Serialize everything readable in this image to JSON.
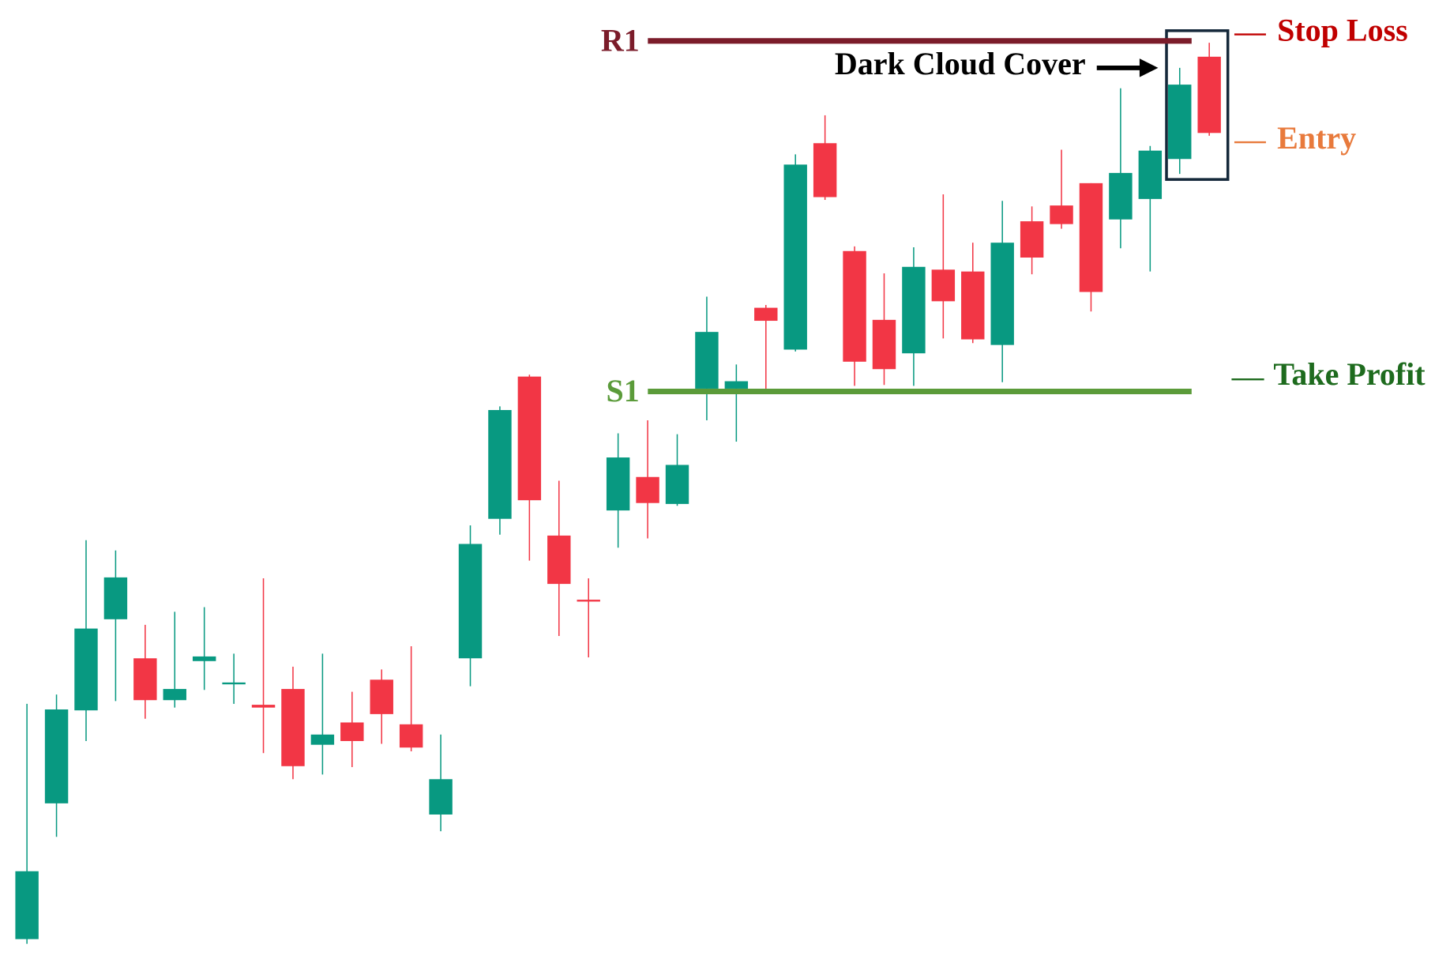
{
  "chart_data": {
    "type": "candlestick",
    "open": [
      30,
      176,
      276,
      374,
      332,
      287,
      329,
      305,
      282,
      299,
      239,
      263,
      309,
      261,
      164,
      332,
      482,
      635,
      464,
      395,
      491,
      527,
      498,
      622,
      622,
      709,
      664,
      886,
      770,
      696,
      660,
      750,
      748,
      669,
      802,
      819,
      843,
      804,
      826,
      869,
      979
    ],
    "high": [
      283,
      293,
      459,
      448,
      368,
      382,
      387,
      337,
      418,
      323,
      337,
      296,
      320,
      345,
      250,
      475,
      603,
      637,
      523,
      418,
      574,
      588,
      573,
      721,
      648,
      712,
      874,
      916,
      775,
      746,
      774,
      831,
      779,
      824,
      818,
      879,
      843,
      945,
      883,
      967,
      994
    ],
    "low": [
      25,
      140,
      243,
      286,
      267,
      279,
      298,
      283,
      230,
      202,
      207,
      215,
      240,
      232,
      146,
      302,
      465,
      437,
      356,
      333,
      451,
      461,
      496,
      588,
      565,
      622,
      662,
      825,
      625,
      626,
      625,
      676,
      671,
      629,
      745,
      794,
      705,
      773,
      748,
      853,
      894
    ],
    "close": [
      103,
      277,
      364,
      419,
      287,
      299,
      334,
      306,
      279,
      216,
      250,
      243,
      272,
      236,
      202,
      455,
      599,
      502,
      412,
      393,
      548,
      499,
      540,
      683,
      630,
      695,
      863,
      828,
      651,
      643,
      753,
      716,
      675,
      779,
      763,
      799,
      726,
      854,
      878,
      949,
      897
    ],
    "up_color": "#089981",
    "down_color": "#f23645",
    "ylim": [
      0,
      1040
    ],
    "levels": [
      {
        "label": "R1",
        "value": 996,
        "color": "#7b1c2a"
      },
      {
        "label": "S1",
        "value": 619,
        "color": "#5b9b3a"
      }
    ],
    "annotations": {
      "pattern": "Dark Cloud Cover",
      "stop_loss": "Stop Loss",
      "entry": "Entry",
      "take_profit": "Take Profit"
    }
  }
}
